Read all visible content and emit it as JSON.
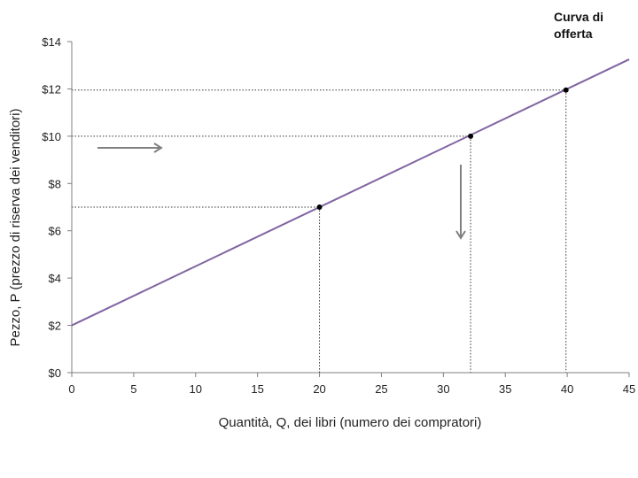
{
  "chart_data": {
    "type": "line",
    "title": "",
    "xlabel": "Quantità, Q, dei libri (numero dei compratori)",
    "ylabel": "Pezzo, P (prezzo di riserva dei venditori)",
    "xlim": [
      0,
      45
    ],
    "ylim": [
      0,
      14
    ],
    "x_ticks": [
      "0",
      "5",
      "10",
      "15",
      "20",
      "25",
      "30",
      "35",
      "40",
      "45"
    ],
    "y_ticks": [
      "$0",
      "$2",
      "$4",
      "$6",
      "$8",
      "$10",
      "$12",
      "$14"
    ],
    "x_tick_values": [
      0,
      5,
      10,
      15,
      20,
      25,
      30,
      35,
      40,
      45
    ],
    "y_tick_values": [
      0,
      2,
      4,
      6,
      8,
      10,
      12,
      14
    ],
    "grid": false,
    "line": {
      "x": [
        0,
        45
      ],
      "y": [
        2,
        13.25
      ],
      "color": "#8064a2"
    },
    "points": [
      {
        "x": 20,
        "y": 7
      },
      {
        "x": 32.2,
        "y": 10
      },
      {
        "x": 39.9,
        "y": 11.95
      }
    ],
    "annotation": {
      "lines": [
        "Curva di",
        "offerta"
      ]
    },
    "arrows": [
      {
        "direction": "right",
        "color": "#808080"
      },
      {
        "direction": "down",
        "color": "#808080"
      }
    ]
  }
}
